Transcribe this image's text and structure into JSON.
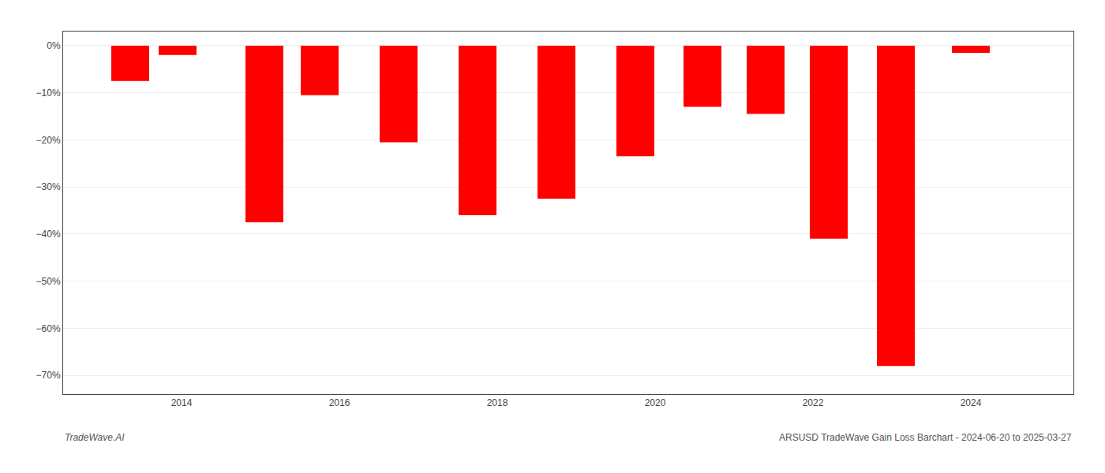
{
  "chart_data": {
    "type": "bar",
    "x": [
      2013.35,
      2013.95,
      2015.05,
      2015.75,
      2016.75,
      2017.75,
      2018.75,
      2019.75,
      2020.6,
      2021.4,
      2022.2,
      2023.05,
      2024.0
    ],
    "values": [
      -7.5,
      -2.0,
      -37.5,
      -10.5,
      -20.5,
      -36.0,
      -32.5,
      -23.5,
      -13.0,
      -14.5,
      -41.0,
      -68.0,
      -1.5
    ],
    "color": "#ff0000",
    "xlim": [
      2012.5,
      2025.3
    ],
    "xticks": [
      2014,
      2016,
      2018,
      2020,
      2022,
      2024
    ],
    "ylim": [
      -74,
      3
    ],
    "yticks": [
      {
        "value": 0,
        "label": "0%"
      },
      {
        "value": -10,
        "label": "−10%"
      },
      {
        "value": -20,
        "label": "−20%"
      },
      {
        "value": -30,
        "label": "−30%"
      },
      {
        "value": -40,
        "label": "−40%"
      },
      {
        "value": -50,
        "label": "−50%"
      },
      {
        "value": -60,
        "label": "−60%"
      },
      {
        "value": -70,
        "label": "−70%"
      }
    ],
    "grid": true,
    "annotations": [
      "TradeWave.AI",
      "ARSUSD TradeWave Gain Loss Barchart - 2024-06-20 to 2025-03-27"
    ]
  }
}
